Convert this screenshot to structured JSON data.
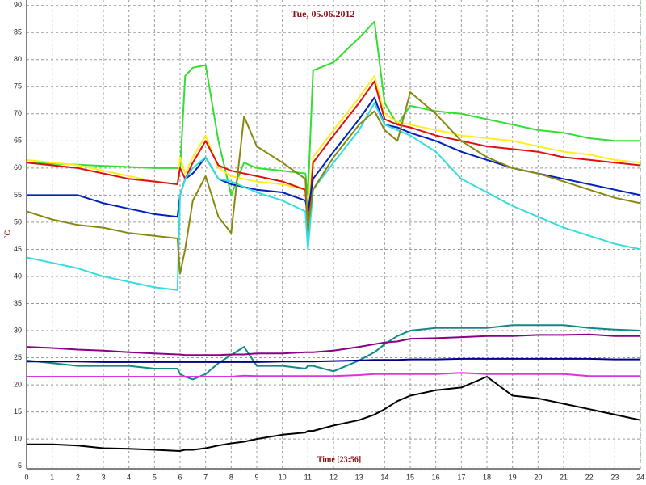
{
  "chart_data": {
    "type": "line",
    "title": "Tue, 05.06.2012",
    "y_label": "°C",
    "x_label": "Time [23:56]",
    "x": [
      0,
      1,
      2,
      3,
      4,
      5,
      5.9,
      6,
      6.2,
      6.5,
      7,
      7.5,
      8,
      8.5,
      9,
      10,
      10.9,
      11,
      11.2,
      12,
      13,
      13.6,
      14,
      14.5,
      15,
      16,
      17,
      18,
      19,
      20,
      21,
      22,
      23,
      24
    ],
    "xlim": [
      0,
      24
    ],
    "xticks": [
      0,
      1,
      2,
      3,
      4,
      5,
      6,
      7,
      8,
      9,
      10,
      11,
      12,
      13,
      14,
      15,
      16,
      17,
      18,
      19,
      20,
      21,
      22,
      23,
      24
    ],
    "ylim": [
      4.5,
      91
    ],
    "yticks": [
      5,
      10,
      15,
      20,
      25,
      30,
      35,
      40,
      45,
      50,
      55,
      60,
      65,
      70,
      75,
      80,
      85,
      90
    ],
    "grid": true,
    "series": [
      {
        "color": "#33dd33",
        "values": [
          61,
          60.8,
          60.6,
          60.4,
          60.2,
          60,
          60,
          59.5,
          77,
          78.5,
          79,
          65,
          55,
          61,
          60,
          59.5,
          59,
          55,
          78,
          79.5,
          84,
          87,
          72,
          68,
          71.5,
          70.5,
          70,
          69,
          68,
          67,
          66.5,
          65.5,
          65,
          65
        ]
      },
      {
        "color": "#ffee22",
        "values": [
          61.5,
          61,
          60.5,
          59.5,
          58.5,
          57.5,
          57,
          62,
          59,
          62,
          66,
          60,
          58.5,
          58,
          57.5,
          57,
          56,
          52,
          62,
          67,
          73,
          77,
          70,
          68.5,
          68,
          67,
          66,
          65.5,
          65,
          64,
          63,
          62.5,
          61.5,
          61
        ]
      },
      {
        "color": "#dd1111",
        "values": [
          61,
          60.5,
          60,
          59,
          58,
          57.5,
          57,
          60,
          58,
          61,
          65,
          60.5,
          59.5,
          59,
          58.5,
          57.5,
          56,
          48,
          61,
          66,
          72,
          76,
          69,
          68,
          67.5,
          66,
          65,
          64,
          63.5,
          63,
          62,
          61.5,
          61,
          60.5
        ]
      },
      {
        "color": "#0022bb",
        "values": [
          55,
          55,
          55,
          53.5,
          52.5,
          51.5,
          51,
          55,
          58,
          59,
          62,
          58,
          57,
          56.5,
          56,
          55.5,
          54,
          52,
          58,
          63,
          69,
          73,
          68,
          67.5,
          66.5,
          65,
          63,
          61.5,
          60,
          59,
          58,
          57,
          56,
          55
        ]
      },
      {
        "color": "#33dddd",
        "values": [
          43.5,
          42.5,
          41.5,
          40,
          39,
          38,
          37.5,
          55,
          58,
          60,
          62,
          58,
          57.5,
          56.5,
          55.5,
          54,
          52,
          45,
          56,
          61,
          67,
          72,
          68,
          67,
          66,
          63,
          58,
          55.5,
          53,
          51,
          49,
          47.5,
          46,
          45
        ]
      },
      {
        "color": "#888811",
        "values": [
          52,
          50.5,
          49.5,
          49,
          48,
          47.5,
          47,
          40.5,
          45,
          54,
          58.5,
          51,
          48,
          69.5,
          64,
          61,
          58,
          49,
          56,
          62,
          68,
          70.5,
          67,
          65,
          74,
          70,
          65,
          62,
          60,
          59,
          57.5,
          56,
          54.5,
          53.5
        ]
      },
      {
        "color": "#118888",
        "values": [
          24.5,
          24,
          23.5,
          23.5,
          23.5,
          23,
          23,
          22,
          21.5,
          21,
          22,
          24,
          25.5,
          27,
          23.5,
          23.5,
          23,
          23.5,
          23.5,
          22.5,
          24.5,
          26,
          27.5,
          29,
          30,
          30.5,
          30.5,
          30.5,
          31,
          31,
          31,
          30.5,
          30.2,
          30
        ]
      },
      {
        "color": "#880088",
        "values": [
          27,
          26.8,
          26.5,
          26.3,
          26,
          25.8,
          25.6,
          25.6,
          25.5,
          25.5,
          25.5,
          25.5,
          25.6,
          25.6,
          25.8,
          25.8,
          26,
          26,
          26,
          26.3,
          27,
          27.5,
          27.8,
          28,
          28.5,
          28.6,
          28.8,
          29,
          29,
          29.2,
          29.2,
          29.3,
          29,
          29
        ]
      },
      {
        "color": "#000088",
        "values": [
          24.3,
          24.3,
          24.3,
          24.2,
          24.2,
          24.2,
          24.2,
          24.2,
          24.2,
          24.2,
          24.2,
          24.2,
          24.2,
          24.2,
          24.2,
          24.3,
          24.3,
          24.3,
          24.3,
          24.4,
          24.5,
          24.6,
          24.6,
          24.6,
          24.7,
          24.7,
          24.8,
          24.8,
          24.8,
          24.8,
          24.8,
          24.8,
          24.7,
          24.7
        ]
      },
      {
        "color": "#dd33dd",
        "values": [
          21.5,
          21.5,
          21.5,
          21.5,
          21.5,
          21.5,
          21.5,
          21.5,
          21.5,
          21.5,
          21.5,
          21.5,
          21.5,
          21.7,
          21.6,
          21.6,
          21.6,
          21.6,
          21.6,
          21.6,
          21.8,
          22,
          22,
          22,
          22,
          22,
          22.2,
          22,
          22,
          22,
          22,
          21.6,
          21.6,
          21.6
        ]
      },
      {
        "color": "#000000",
        "values": [
          9,
          9,
          8.8,
          8.3,
          8.2,
          8,
          7.8,
          7.8,
          8,
          8,
          8.3,
          8.8,
          9.2,
          9.5,
          10,
          10.8,
          11.2,
          11.5,
          11.5,
          12.5,
          13.5,
          14.5,
          15.5,
          17,
          18,
          19,
          19.5,
          21.5,
          18,
          17.5,
          16.5,
          15.5,
          14.5,
          13.5
        ]
      }
    ]
  }
}
